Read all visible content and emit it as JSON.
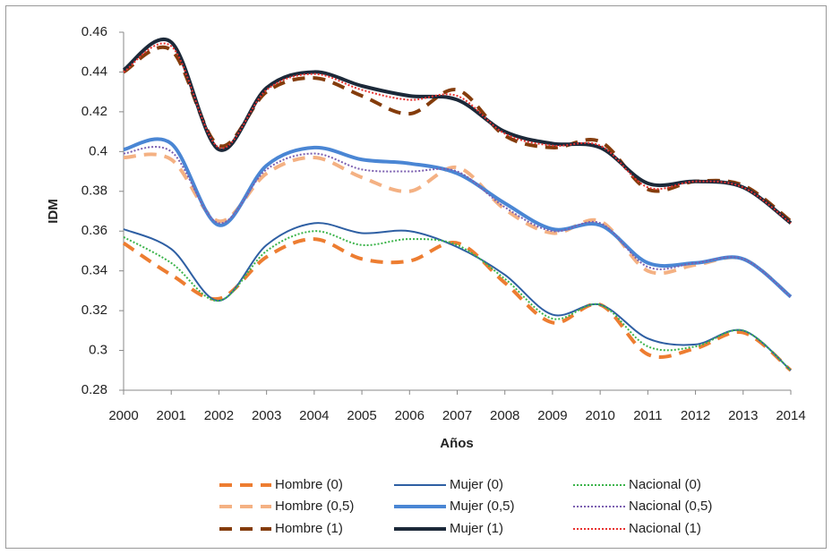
{
  "chart_data": {
    "type": "line",
    "x_label": "Años",
    "y_label": "IDM",
    "x": [
      2000,
      2001,
      2002,
      2003,
      2004,
      2005,
      2006,
      2007,
      2008,
      2009,
      2010,
      2011,
      2012,
      2013,
      2014
    ],
    "xlim": [
      2000,
      2014
    ],
    "xticks": [
      2000,
      2001,
      2002,
      2003,
      2004,
      2005,
      2006,
      2007,
      2008,
      2009,
      2010,
      2011,
      2012,
      2013,
      2014
    ],
    "ylim": [
      0.28,
      0.46
    ],
    "yticks": [
      0.28,
      0.3,
      0.32,
      0.34,
      0.36,
      0.38,
      0.4,
      0.42,
      0.44,
      0.46
    ],
    "grid": false,
    "series": [
      {
        "name": "Hombre (0)",
        "color": "#ed7d31",
        "dash": "long",
        "width": 4,
        "values": [
          0.354,
          0.338,
          0.326,
          0.347,
          0.356,
          0.346,
          0.345,
          0.354,
          0.334,
          0.314,
          0.323,
          0.298,
          0.301,
          0.309,
          0.29
        ]
      },
      {
        "name": "Mujer (0)",
        "color": "#2e5fa3",
        "dash": "solid",
        "width": 2,
        "values": [
          0.361,
          0.351,
          0.325,
          0.353,
          0.364,
          0.359,
          0.36,
          0.352,
          0.338,
          0.318,
          0.323,
          0.306,
          0.303,
          0.31,
          0.29
        ]
      },
      {
        "name": "Nacional (0)",
        "color": "#3cb44b",
        "dash": "dotted",
        "width": 2,
        "values": [
          0.357,
          0.344,
          0.325,
          0.35,
          0.36,
          0.353,
          0.356,
          0.353,
          0.336,
          0.316,
          0.323,
          0.302,
          0.302,
          0.31,
          0.29
        ]
      },
      {
        "name": "Hombre (0,5)",
        "color": "#f4b183",
        "dash": "long",
        "width": 4,
        "values": [
          0.397,
          0.396,
          0.365,
          0.389,
          0.397,
          0.387,
          0.38,
          0.392,
          0.371,
          0.359,
          0.365,
          0.34,
          0.343,
          0.346,
          0.327
        ]
      },
      {
        "name": "Mujer (0,5)",
        "color": "#4a86d4",
        "dash": "solid",
        "width": 4,
        "values": [
          0.401,
          0.404,
          0.363,
          0.393,
          0.402,
          0.396,
          0.394,
          0.389,
          0.374,
          0.361,
          0.363,
          0.344,
          0.344,
          0.346,
          0.327
        ]
      },
      {
        "name": "Nacional (0,5)",
        "color": "#7b5fb0",
        "dash": "dotted",
        "width": 2,
        "values": [
          0.399,
          0.4,
          0.364,
          0.391,
          0.399,
          0.391,
          0.39,
          0.39,
          0.372,
          0.36,
          0.364,
          0.342,
          0.344,
          0.346,
          0.327
        ]
      },
      {
        "name": "Hombre (1)",
        "color": "#843c0c",
        "dash": "long",
        "width": 4,
        "values": [
          0.44,
          0.451,
          0.403,
          0.43,
          0.437,
          0.428,
          0.419,
          0.431,
          0.408,
          0.402,
          0.405,
          0.381,
          0.385,
          0.383,
          0.365
        ]
      },
      {
        "name": "Mujer (1)",
        "color": "#1c2939",
        "dash": "solid",
        "width": 4,
        "values": [
          0.441,
          0.455,
          0.401,
          0.432,
          0.44,
          0.433,
          0.428,
          0.426,
          0.41,
          0.404,
          0.402,
          0.384,
          0.385,
          0.382,
          0.364
        ]
      },
      {
        "name": "Nacional (1)",
        "color": "#e8312f",
        "dash": "dotted",
        "width": 2,
        "values": [
          0.44,
          0.453,
          0.402,
          0.431,
          0.439,
          0.431,
          0.426,
          0.428,
          0.409,
          0.403,
          0.403,
          0.382,
          0.385,
          0.382,
          0.364
        ]
      }
    ]
  }
}
